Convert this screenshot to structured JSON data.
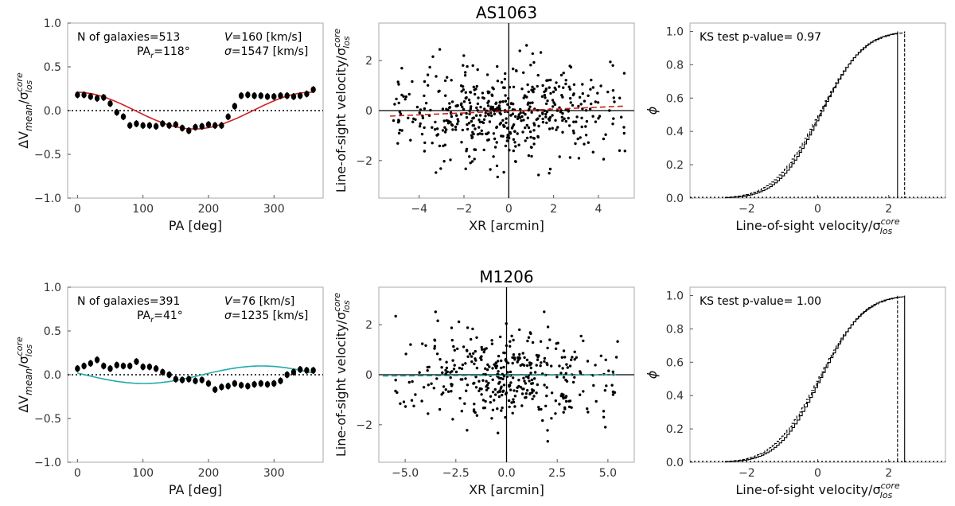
{
  "chart_data": [
    {
      "type": "scatter",
      "panel": "AS1063-dv-vs-pa",
      "xlabel": "PA [deg]",
      "ylabel": "ΔV_mean/σ_los^core",
      "xlim": [
        -15,
        375
      ],
      "ylim": [
        -1.0,
        1.0
      ],
      "xticks": [
        0,
        100,
        200,
        300
      ],
      "yticks": [
        -1.0,
        -0.5,
        0.0,
        0.5,
        1.0
      ],
      "ytick_labels": [
        "−1.0",
        "−0.5",
        "0.0",
        "0.5",
        "1.0"
      ],
      "annotations": {
        "n_galaxies": "N of galaxies=513",
        "pa_r": "PA",
        "pa_r_sub": "r",
        "pa_r_val": "=118°",
        "v_sym": "V",
        "v_val": "=160 [km/s]",
        "sigma_sym": "σ",
        "sigma_val": "=1547 [km/s]"
      },
      "fit_color": "#cc2222",
      "fit_amp": 0.21,
      "fit_phase": 118,
      "pa": [
        0,
        10,
        20,
        30,
        40,
        50,
        60,
        70,
        80,
        90,
        100,
        110,
        120,
        130,
        140,
        150,
        160,
        170,
        180,
        190,
        200,
        210,
        220,
        230,
        240,
        250,
        260,
        270,
        280,
        290,
        300,
        310,
        320,
        330,
        340,
        350,
        360
      ],
      "values": [
        0.18,
        0.18,
        0.16,
        0.14,
        0.15,
        0.08,
        -0.02,
        -0.07,
        -0.17,
        -0.15,
        -0.17,
        -0.17,
        -0.18,
        -0.15,
        -0.17,
        -0.16,
        -0.2,
        -0.23,
        -0.19,
        -0.18,
        -0.16,
        -0.17,
        -0.17,
        -0.07,
        0.05,
        0.17,
        0.18,
        0.17,
        0.17,
        0.16,
        0.16,
        0.17,
        0.17,
        0.16,
        0.17,
        0.19,
        0.24
      ],
      "err": 0.04
    },
    {
      "type": "scatter",
      "panel": "AS1063-velocity-vs-xr",
      "title": "AS1063",
      "xlabel": "XR [arcmin]",
      "ylabel": "Line-of-sight velocity/σ_los^core",
      "xlim": [
        -5.8,
        5.6
      ],
      "ylim": [
        -3.5,
        3.5
      ],
      "xticks": [
        -4,
        -2,
        0,
        2,
        4
      ],
      "xtick_labels": [
        "−4",
        "−2",
        "0",
        "2",
        "4"
      ],
      "yticks": [
        -2,
        0,
        2
      ],
      "ytick_labels": [
        "−2",
        "0",
        "2"
      ],
      "fit_color": "#cc2222",
      "fit_line": [
        [
          -5.3,
          -0.22
        ],
        [
          5.2,
          0.18
        ]
      ],
      "n_points": 513
    },
    {
      "type": "line",
      "panel": "AS1063-cdf",
      "xlabel": "Line-of-sight velocity/σ_los^core",
      "ylabel": "ϕ",
      "xlim": [
        -3.6,
        3.6
      ],
      "ylim": [
        0.0,
        1.05
      ],
      "xticks": [
        -2,
        0,
        2
      ],
      "xtick_labels": [
        "−2",
        "0",
        "2"
      ],
      "yticks": [
        0.0,
        0.2,
        0.4,
        0.6,
        0.8,
        1.0
      ],
      "ytick_labels": [
        "0.0",
        "0.2",
        "0.4",
        "0.6",
        "0.8",
        "1.0"
      ],
      "annotation": "KS test p-value= 0.97",
      "solid_max": 2.25,
      "dashed_max": 2.45
    },
    {
      "type": "scatter",
      "panel": "M1206-dv-vs-pa",
      "xlabel": "PA [deg]",
      "ylabel": "ΔV_mean/σ_los^core",
      "xlim": [
        -15,
        375
      ],
      "ylim": [
        -1.0,
        1.0
      ],
      "xticks": [
        0,
        100,
        200,
        300
      ],
      "yticks": [
        -1.0,
        -0.5,
        0.0,
        0.5,
        1.0
      ],
      "ytick_labels": [
        "−1.0",
        "−0.5",
        "0.0",
        "0.5",
        "1.0"
      ],
      "annotations": {
        "n_galaxies": "N of galaxies=391",
        "pa_r": "PA",
        "pa_r_sub": "r",
        "pa_r_val": "=41°",
        "v_sym": "V",
        "v_val": "=76 [km/s]",
        "sigma_sym": "σ",
        "sigma_val": "=1235 [km/s]"
      },
      "fit_color": "#22aaaa",
      "fit_amp": 0.1,
      "fit_phase": 41,
      "pa": [
        0,
        10,
        20,
        30,
        40,
        50,
        60,
        70,
        80,
        90,
        100,
        110,
        120,
        130,
        140,
        150,
        160,
        170,
        180,
        190,
        200,
        210,
        220,
        230,
        240,
        250,
        260,
        270,
        280,
        290,
        300,
        310,
        320,
        330,
        340,
        350,
        360
      ],
      "values": [
        0.07,
        0.1,
        0.13,
        0.17,
        0.1,
        0.07,
        0.11,
        0.1,
        0.1,
        0.15,
        0.09,
        0.09,
        0.07,
        0.03,
        0.0,
        -0.05,
        -0.06,
        -0.05,
        -0.07,
        -0.06,
        -0.1,
        -0.17,
        -0.14,
        -0.13,
        -0.1,
        -0.12,
        -0.13,
        -0.11,
        -0.1,
        -0.11,
        -0.1,
        -0.07,
        0.0,
        0.03,
        0.06,
        0.05,
        0.05
      ],
      "err": 0.04
    },
    {
      "type": "scatter",
      "panel": "M1206-velocity-vs-xr",
      "title": "M1206",
      "xlabel": "XR [arcmin]",
      "ylabel": "Line-of-sight velocity/σ_los^core",
      "xlim": [
        -6.3,
        6.3
      ],
      "ylim": [
        -3.5,
        3.5
      ],
      "xticks": [
        -5.0,
        -2.5,
        0.0,
        2.5,
        5.0
      ],
      "xtick_labels": [
        "−5.0",
        "−2.5",
        "0.0",
        "2.5",
        "5.0"
      ],
      "yticks": [
        -2,
        0,
        2
      ],
      "ytick_labels": [
        "−2",
        "0",
        "2"
      ],
      "fit_color": "#22aaaa",
      "fit_line": [
        [
          -6.1,
          -0.05
        ],
        [
          5.5,
          0.0
        ]
      ],
      "n_points": 391
    },
    {
      "type": "line",
      "panel": "M1206-cdf",
      "xlabel": "Line-of-sight velocity/σ_los^core",
      "ylabel": "ϕ",
      "xlim": [
        -3.6,
        3.6
      ],
      "ylim": [
        0.0,
        1.05
      ],
      "xticks": [
        -2,
        0,
        2
      ],
      "xtick_labels": [
        "−2",
        "0",
        "2"
      ],
      "yticks": [
        0.0,
        0.2,
        0.4,
        0.6,
        0.8,
        1.0
      ],
      "ytick_labels": [
        "0.0",
        "0.2",
        "0.4",
        "0.6",
        "0.8",
        "1.0"
      ],
      "annotation": "KS test p-value= 1.00",
      "solid_max": 2.45,
      "dashed_max": 2.25
    }
  ]
}
